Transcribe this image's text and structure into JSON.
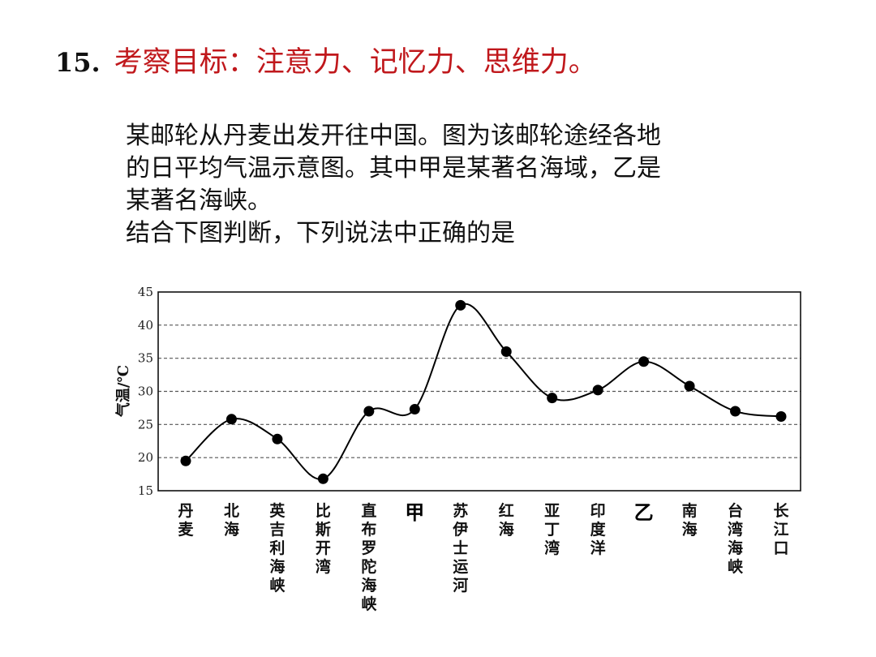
{
  "question": {
    "number": "15.",
    "title": "考察目标：注意力、记忆力、思维力。"
  },
  "body": {
    "line1": "某邮轮从丹麦出发开往中国。图为该邮轮途经各地",
    "line2": "的日平均气温示意图。其中甲是某著名海域，乙是",
    "line3": "某著名海峡。",
    "line4": "结合下图判断，下列说法中正确的是"
  },
  "chart_data": {
    "type": "line",
    "ylabel": "气温/℃",
    "ylim": [
      15,
      45
    ],
    "yticks": [
      15,
      20,
      25,
      30,
      35,
      40,
      45
    ],
    "grid": "dashed horizontal",
    "categories": [
      "丹麦",
      "北海",
      "英吉利海峡",
      "比斯开湾",
      "直布罗陀海峡",
      "甲",
      "苏伊士运河",
      "红海",
      "亚丁湾",
      "印度洋",
      "乙",
      "南海",
      "台湾海峡",
      "长江口"
    ],
    "highlighted_categories": [
      "甲",
      "乙"
    ],
    "values": [
      19.5,
      25.8,
      22.8,
      16.8,
      27.0,
      27.3,
      43.0,
      36.0,
      29.0,
      30.2,
      34.5,
      30.8,
      27.0,
      26.2
    ]
  },
  "colors": {
    "title": "#c0181c",
    "text": "#111111",
    "line": "#000000",
    "grid": "#555555"
  }
}
